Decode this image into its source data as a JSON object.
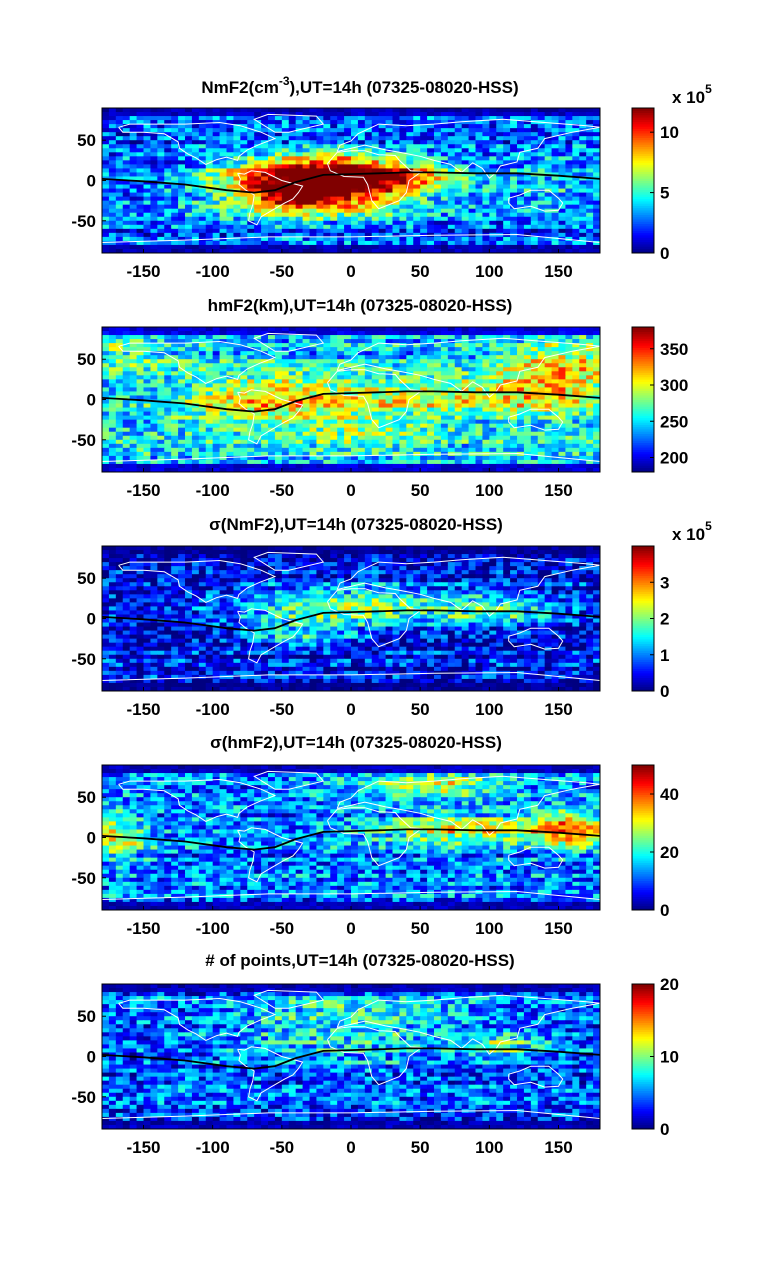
{
  "chart_data": [
    {
      "type": "heatmap",
      "title_main": "NmF2(cm",
      "title_sup": "-3",
      "title_rest": "),UT=14h (07325-08020-HSS)",
      "field": "NmF2",
      "xlim": [
        -180,
        180
      ],
      "ylim": [
        -90,
        90
      ],
      "xticks": [
        "-150",
        "-100",
        "-50",
        "0",
        "50",
        "100",
        "150"
      ],
      "yticks": [
        "50",
        "0",
        "-50"
      ],
      "colorbar": {
        "min": 0,
        "max": 12,
        "ticks": [
          "10",
          "5",
          "0"
        ],
        "multiplier_base": "x 10",
        "multiplier_exp": "5"
      },
      "features": [
        {
          "lat": -8,
          "lon": -25,
          "amp": 10,
          "sx": 48,
          "sy": 22
        },
        {
          "lat": -22,
          "lon": -40,
          "amp": 2.5,
          "sx": 20,
          "sy": 10
        },
        {
          "lat": 12,
          "lon": -20,
          "amp": 5,
          "sx": 40,
          "sy": 14
        },
        {
          "lat": 5,
          "lon": 40,
          "amp": 4,
          "sx": 30,
          "sy": 12
        },
        {
          "lat": 0,
          "lon": 150,
          "amp": 1.5,
          "sx": 40,
          "sy": 20
        }
      ],
      "base": 2.6
    },
    {
      "type": "heatmap",
      "title_main": "hmF2(km),UT=14h (07325-08020-HSS)",
      "title_sup": "",
      "title_rest": "",
      "field": "hmF2",
      "xlim": [
        -180,
        180
      ],
      "ylim": [
        -90,
        90
      ],
      "xticks": [
        "-150",
        "-100",
        "-50",
        "0",
        "50",
        "100",
        "150"
      ],
      "yticks": [
        "50",
        "0",
        "-50"
      ],
      "colorbar": {
        "min": 180,
        "max": 380,
        "ticks": [
          "350",
          "300",
          "250",
          "200"
        ],
        "multiplier_base": "",
        "multiplier_exp": ""
      },
      "features": [
        {
          "lat": 0,
          "lon": -60,
          "amp": 70,
          "sx": 45,
          "sy": 22
        },
        {
          "lat": 5,
          "lon": 70,
          "amp": 60,
          "sx": 60,
          "sy": 15
        },
        {
          "lat": 30,
          "lon": 150,
          "amp": 70,
          "sx": 30,
          "sy": 30
        },
        {
          "lat": 60,
          "lon": -160,
          "amp": 30,
          "sx": 25,
          "sy": 20
        },
        {
          "lat": -40,
          "lon": 20,
          "amp": 30,
          "sx": 40,
          "sy": 15
        }
      ],
      "base": 245
    },
    {
      "type": "heatmap",
      "title_main": "σ(NmF2),UT=14h (07325-08020-HSS)",
      "title_sup": "",
      "title_rest": "",
      "field": "sigma-NmF2",
      "xlim": [
        -180,
        180
      ],
      "ylim": [
        -90,
        90
      ],
      "xticks": [
        "-150",
        "-100",
        "-50",
        "0",
        "50",
        "100",
        "150"
      ],
      "yticks": [
        "50",
        "0",
        "-50"
      ],
      "colorbar": {
        "min": 0,
        "max": 4,
        "ticks": [
          "3",
          "2",
          "1",
          "0"
        ],
        "multiplier_base": "x 10",
        "multiplier_exp": "5"
      },
      "features": [
        {
          "lat": 15,
          "lon": 0,
          "amp": 1.6,
          "sx": 55,
          "sy": 18
        },
        {
          "lat": -20,
          "lon": -40,
          "amp": 1.0,
          "sx": 30,
          "sy": 12
        },
        {
          "lat": 10,
          "lon": 110,
          "amp": 1.0,
          "sx": 35,
          "sy": 15
        }
      ],
      "base": 0.45
    },
    {
      "type": "heatmap",
      "title_main": "σ(hmF2),UT=14h (07325-08020-HSS)",
      "title_sup": "",
      "title_rest": "",
      "field": "sigma-hmF2",
      "xlim": [
        -180,
        180
      ],
      "ylim": [
        -90,
        90
      ],
      "xticks": [
        "-150",
        "-100",
        "-50",
        "0",
        "50",
        "100",
        "150"
      ],
      "yticks": [
        "50",
        "0",
        "-50"
      ],
      "colorbar": {
        "min": 0,
        "max": 50,
        "ticks": [
          "40",
          "20",
          "0"
        ],
        "multiplier_base": "",
        "multiplier_exp": ""
      },
      "features": [
        {
          "lat": 10,
          "lon": 80,
          "amp": 20,
          "sx": 45,
          "sy": 12
        },
        {
          "lat": 10,
          "lon": 160,
          "amp": 25,
          "sx": 20,
          "sy": 15
        },
        {
          "lat": 0,
          "lon": -170,
          "amp": 18,
          "sx": 15,
          "sy": 20
        },
        {
          "lat": 65,
          "lon": 60,
          "amp": 18,
          "sx": 40,
          "sy": 10
        }
      ],
      "base": 12
    },
    {
      "type": "heatmap",
      "title_main": "# of points,UT=14h (07325-08020-HSS)",
      "title_sup": "",
      "title_rest": "",
      "field": "points",
      "xlim": [
        -180,
        180
      ],
      "ylim": [
        -90,
        90
      ],
      "xticks": [
        "-150",
        "-100",
        "-50",
        "0",
        "50",
        "100",
        "150"
      ],
      "yticks": [
        "50",
        "0",
        "-50"
      ],
      "colorbar": {
        "min": 0,
        "max": 20,
        "ticks": [
          "20",
          "10",
          "0"
        ],
        "multiplier_base": "",
        "multiplier_exp": ""
      },
      "features": [
        {
          "lat": 25,
          "lon": 0,
          "amp": 4,
          "sx": 70,
          "sy": 25
        },
        {
          "lat": 15,
          "lon": 110,
          "amp": 5,
          "sx": 25,
          "sy": 10
        },
        {
          "lat": 60,
          "lon": 0,
          "amp": 3,
          "sx": 50,
          "sy": 10
        }
      ],
      "base": 4
    }
  ]
}
